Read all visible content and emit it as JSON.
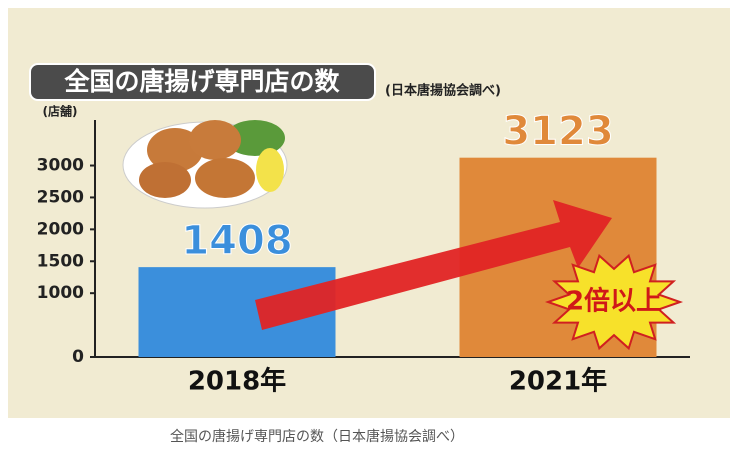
{
  "chart_data": {
    "type": "bar",
    "title": "全国の唐揚げ専門店の数",
    "source": "(日本唐揚協会調べ)",
    "y_label": "(店舗)",
    "categories": [
      "2018年",
      "2021年"
    ],
    "values": [
      1408,
      3123
    ],
    "colors": [
      "#3b8fdc",
      "#e0893a"
    ],
    "ylim": [
      0,
      3400
    ],
    "yticks": [
      0,
      1000,
      1500,
      2000,
      2500,
      3000
    ],
    "annotation": "2倍以上"
  },
  "caption": "全国の唐揚げ専門店の数（日本唐揚協会調べ）"
}
